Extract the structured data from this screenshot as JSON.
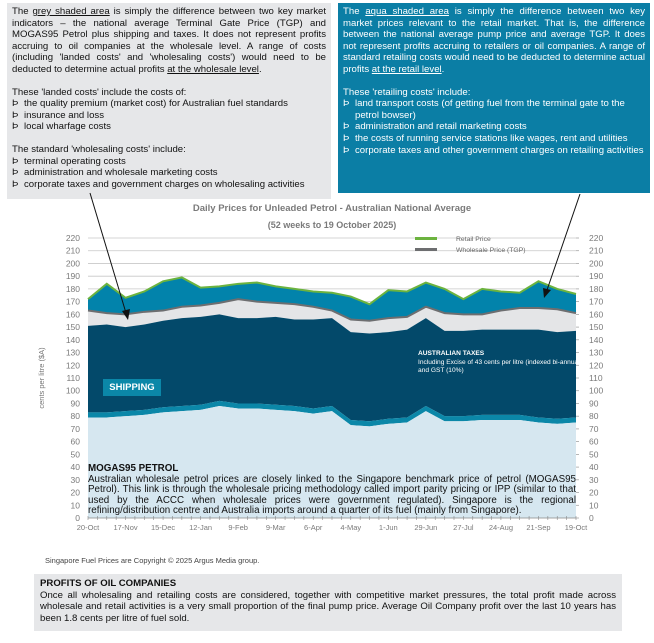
{
  "grey_box": {
    "intro_pre": "The ",
    "intro_link": "grey shaded area",
    "intro_mid": " is simply the difference between two key market indicators – the national average Terminal Gate Price (TGP) and MOGAS95 Petrol plus shipping and taxes. It does not represent profits accruing to oil companies at the wholesale level. A range of costs (including 'landed costs' and 'wholesaling costs') would need to be deducted to determine actual profits ",
    "intro_end": "at the wholesale level",
    "landed_heading": "These 'landed costs' include the costs of:",
    "landed_items": [
      "the quality premium (market cost) for Australian fuel standards",
      "insurance and loss",
      "local wharfage costs"
    ],
    "wholesaling_heading": "The standard 'wholesaling costs' include:",
    "wholesaling_items": [
      "terminal operating costs",
      "administration and wholesale marketing costs",
      "corporate taxes and government charges on wholesaling activities"
    ]
  },
  "aqua_box": {
    "intro_pre": "The ",
    "intro_link": "aqua shaded area",
    "intro_mid": " is simply the difference between two key market prices relevant to the retail market. That is, the difference between the national average pump price and average TGP. It does not represent profits accruing to retailers or  oil companies. A range of standard retailing costs would need to be deducted to determine actual profits ",
    "intro_end": "at the retail level",
    "heading": "These 'retailing costs' include:",
    "items": [
      "land transport costs  (of getting fuel from the terminal gate to the petrol bowser)",
      "administration and retail marketing costs",
      "the costs of running service stations like wages, rent and utilities",
      "corporate taxes and other government charges on retailing activities"
    ]
  },
  "chart_data": {
    "type": "area",
    "title": "Daily Prices for Unleaded Petrol - Australian National Average",
    "subtitle": "(52 weeks to 19 October 2025)",
    "ylabel": "cents per litre  ($A)",
    "ylim": [
      0,
      220
    ],
    "yticks": [
      "0",
      "10",
      "20",
      "30",
      "40",
      "50",
      "60",
      "70",
      "80",
      "90",
      "100",
      "110",
      "120",
      "130",
      "140",
      "150",
      "160",
      "170",
      "180",
      "190",
      "200",
      "210",
      "220"
    ],
    "xtick_labels": [
      "20-Oct",
      "17-Nov",
      "15-Dec",
      "12-Jan",
      "9-Feb",
      "9-Mar",
      "6-Apr",
      "4-May",
      "1-Jun",
      "29-Jun",
      "27-Jul",
      "24-Aug",
      "21-Sep",
      "19-Oct"
    ],
    "grid": true,
    "legend_placement": "top-right",
    "x": [
      "2024-10-20",
      "2024-11-03",
      "2024-11-17",
      "2024-12-01",
      "2024-12-15",
      "2024-12-29",
      "2025-01-12",
      "2025-01-26",
      "2025-02-09",
      "2025-02-23",
      "2025-03-09",
      "2025-03-23",
      "2025-04-06",
      "2025-04-20",
      "2025-05-04",
      "2025-05-18",
      "2025-06-01",
      "2025-06-15",
      "2025-06-29",
      "2025-07-13",
      "2025-07-27",
      "2025-08-10",
      "2025-08-24",
      "2025-09-07",
      "2025-09-21",
      "2025-10-05",
      "2025-10-19"
    ],
    "series": [
      {
        "name": "Retail Price",
        "color": "#6cb33f",
        "values": [
          172,
          184,
          173,
          178,
          186,
          189,
          181,
          182,
          184,
          185,
          182,
          180,
          178,
          177,
          174,
          168,
          179,
          178,
          185,
          180,
          172,
          180,
          178,
          177,
          186,
          180,
          176
        ]
      },
      {
        "name": "Wholesale Price (TGP)",
        "color": "#6d6e70",
        "values": [
          163,
          161,
          160,
          162,
          163,
          166,
          167,
          169,
          172,
          170,
          169,
          168,
          166,
          163,
          156,
          155,
          157,
          158,
          166,
          161,
          160,
          160,
          163,
          165,
          165,
          164,
          161
        ]
      }
    ],
    "layers": [
      {
        "label": "AUSTRALIAN TAXES",
        "note": "Including  Excise  of  43  cents  per  litre (indexed bi-annually) and GST (10%)",
        "color": "#03496a",
        "top_values": [
          151,
          152,
          150,
          152,
          155,
          157,
          158,
          160,
          157,
          157,
          158,
          156,
          156,
          157,
          146,
          145,
          146,
          148,
          157,
          147,
          147,
          148,
          148,
          148,
          148,
          146,
          147
        ]
      },
      {
        "label": "SHIPPING",
        "color": "#0b87a8",
        "top_values": [
          83,
          83,
          84,
          85,
          87,
          88,
          89,
          92,
          90,
          90,
          89,
          88,
          86,
          88,
          77,
          76,
          78,
          79,
          88,
          80,
          80,
          81,
          81,
          81,
          79,
          78,
          79
        ]
      },
      {
        "label": "MOGAS95 PETROL",
        "color": "#d6e7f0",
        "top_values": [
          79,
          79,
          80,
          81,
          83,
          84,
          85,
          88,
          86,
          86,
          85,
          84,
          82,
          84,
          73,
          72,
          74,
          75,
          84,
          76,
          76,
          77,
          77,
          77,
          75,
          74,
          75
        ]
      }
    ],
    "grey_area_color": "#e4e5e7",
    "aqua_area_color": "#0283ab"
  },
  "mogas": {
    "title": "MOGAS95 PETROL",
    "text": "Australian wholesale petrol prices are closely linked to the Singapore benchmark price of petrol (MOGAS95 Petrol). This link is through the wholesale pricing methodology called import parity pricing or IPP (similar to that used by the ACCC when wholesale prices were government regulated). Singapore is the regional refining/distribution centre and Australia imports around a quarter of its fuel (mainly from Singapore)."
  },
  "copyright": "Singapore  Fuel Prices  are Copyright  © 2025  Argus Media group.",
  "profits": {
    "title": "PROFITS OF OIL COMPANIES",
    "text": "Once all wholesaling and retailing costs are considered, together with competitive market pressures, the total profit made across wholesale and retail activities is a very small proportion of the final pump price. Average Oil Company profit over the last 10 years has been 1.8 cents per litre of fuel sold."
  }
}
